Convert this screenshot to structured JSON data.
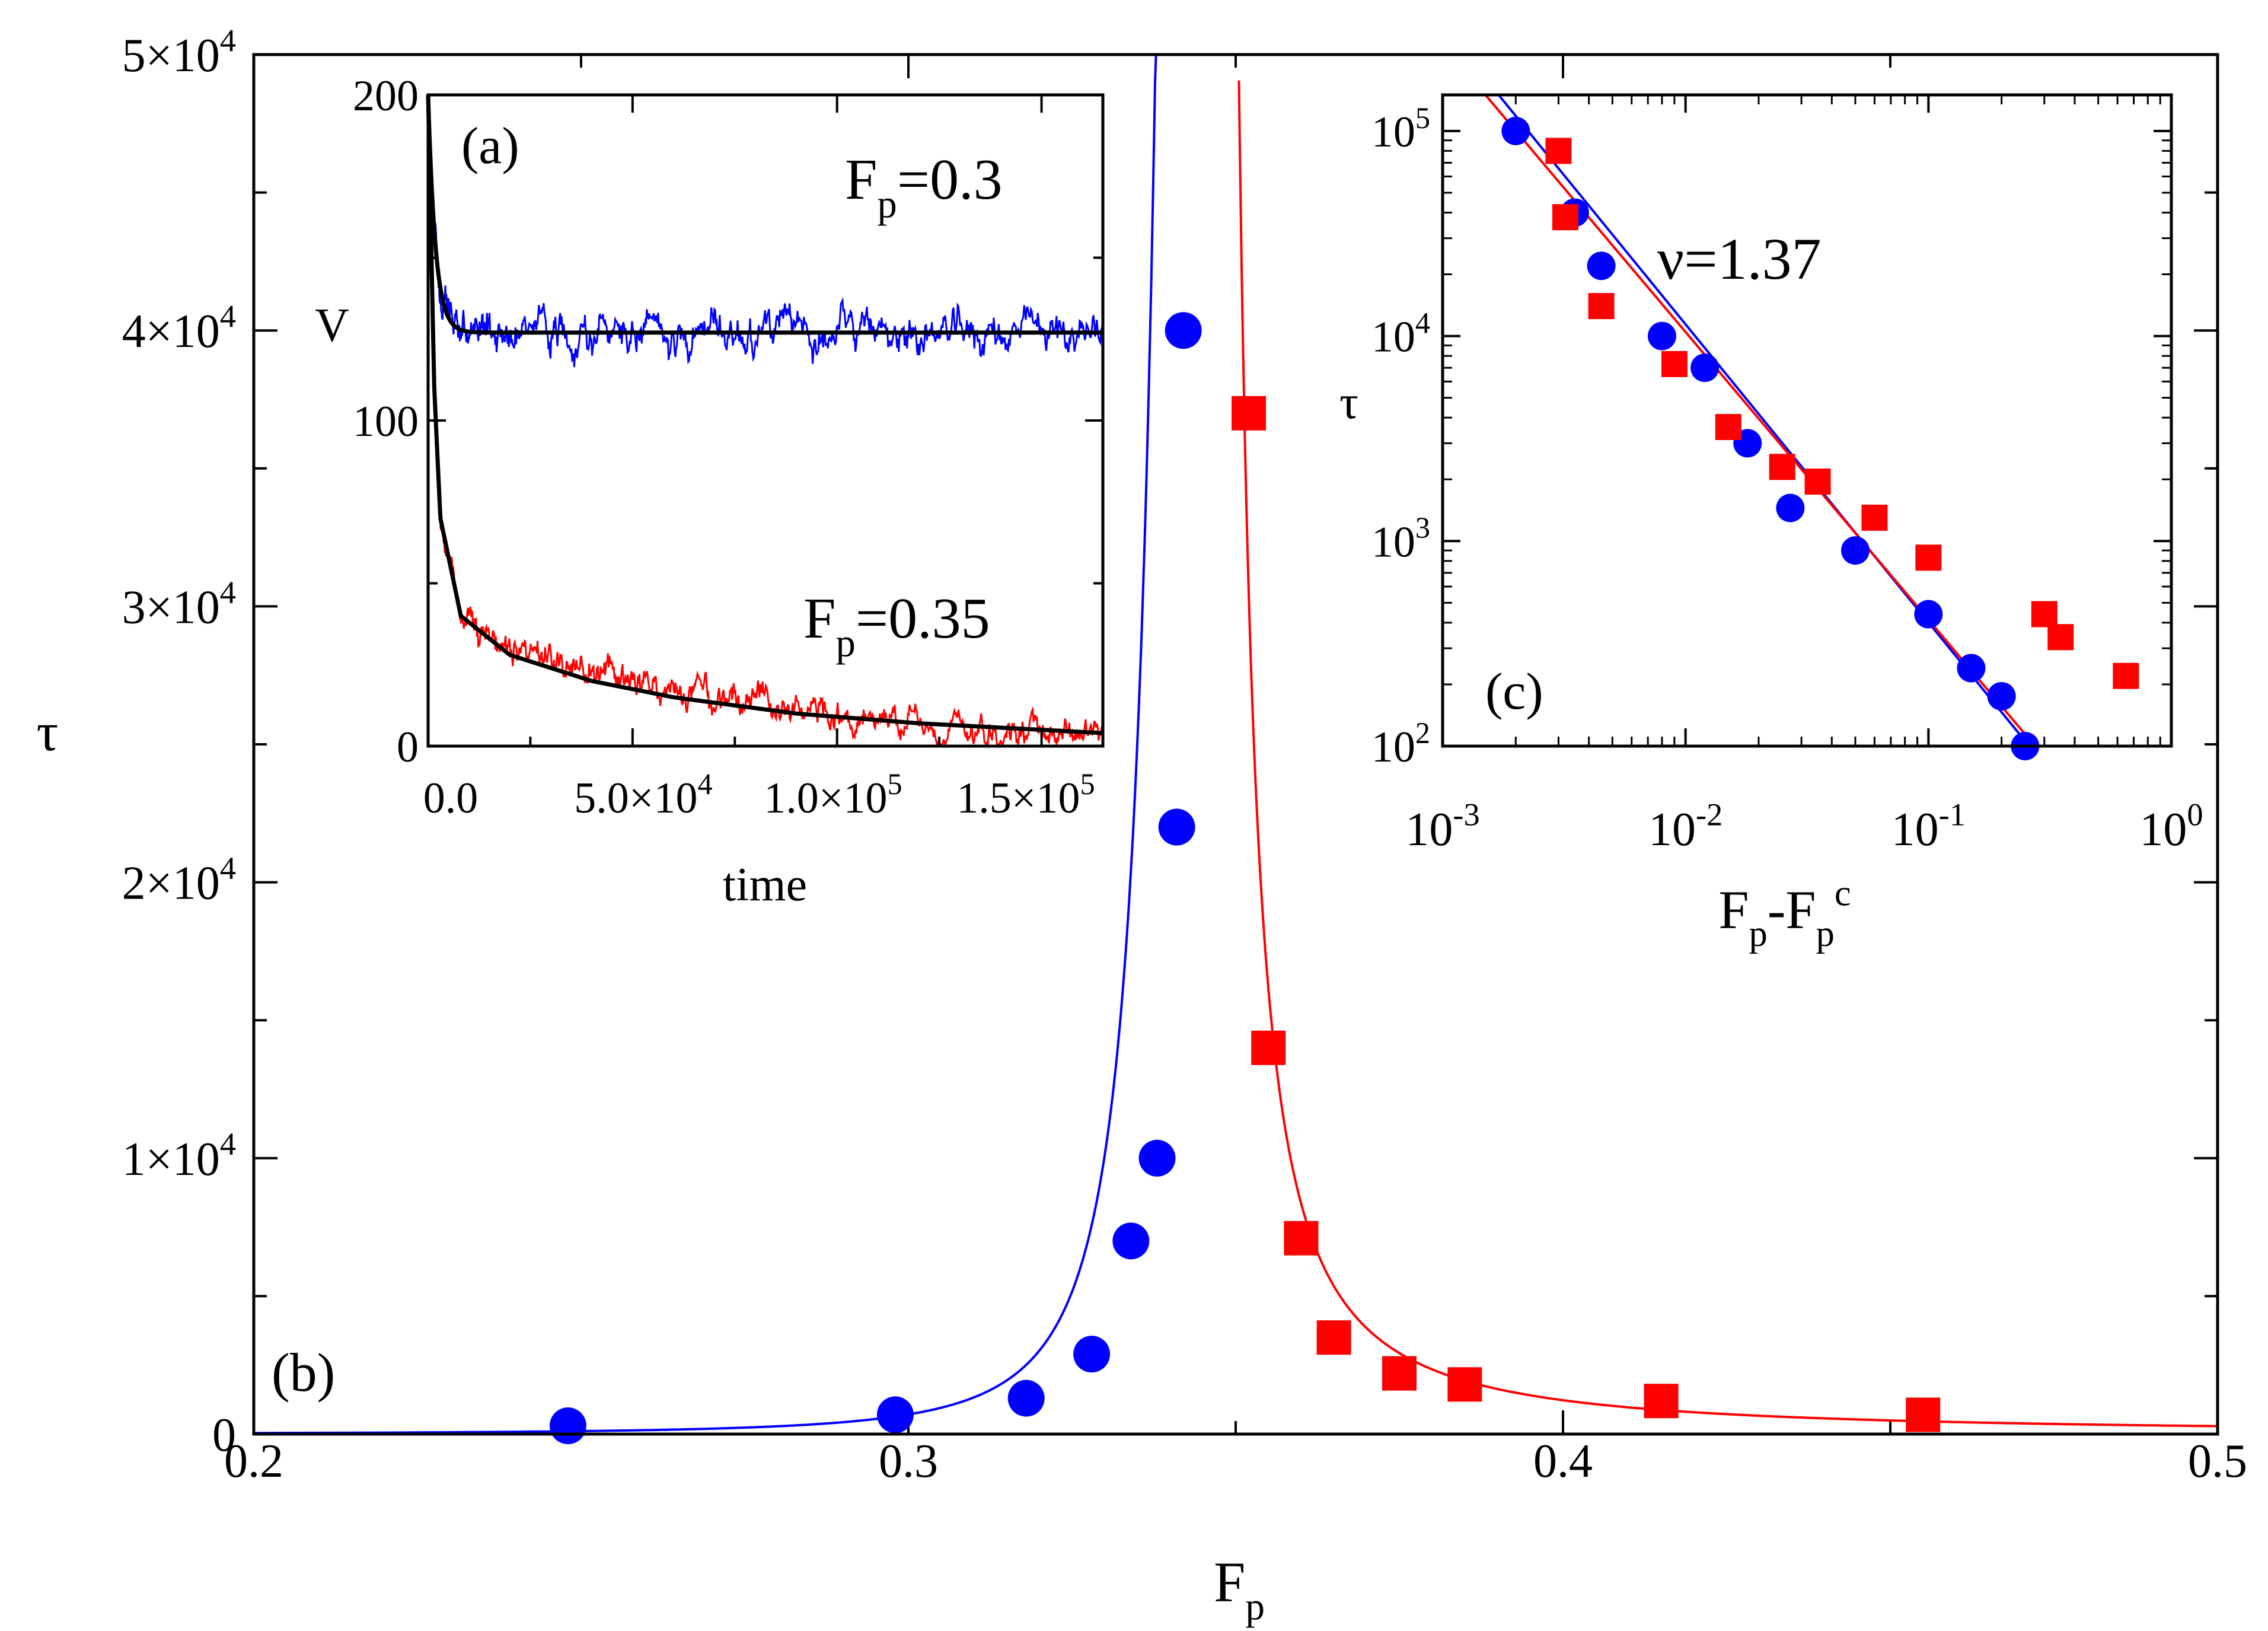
{
  "chart_data": [
    {
      "id": "b",
      "type": "scatter",
      "panel_label": "(b)",
      "xlabel": "F",
      "xlabel_sub": "p",
      "ylabel": "τ",
      "xlim": [
        0.2,
        0.5
      ],
      "ylim": [
        0,
        50000
      ],
      "x_ticks": [
        {
          "v": 0.2,
          "label": "0.2"
        },
        {
          "v": 0.3,
          "label": "0.3"
        },
        {
          "v": 0.4,
          "label": "0.4"
        },
        {
          "v": 0.5,
          "label": "0.5"
        }
      ],
      "y_ticks": [
        {
          "v": 0,
          "label": "0",
          "sup": ""
        },
        {
          "v": 10000,
          "label": "1×10",
          "sup": "4"
        },
        {
          "v": 20000,
          "label": "2×10",
          "sup": "4"
        },
        {
          "v": 30000,
          "label": "3×10",
          "sup": "4"
        },
        {
          "v": 40000,
          "label": "4×10",
          "sup": "4"
        },
        {
          "v": 50000,
          "label": "5×10",
          "sup": "4"
        }
      ],
      "critical_point": 0.3469,
      "series": [
        {
          "name": "below critical (circles)",
          "marker": "circle",
          "color": "#0000ff",
          "x": [
            0.248,
            0.298,
            0.318,
            0.328,
            0.334,
            0.338,
            0.341,
            0.342
          ],
          "y": [
            300,
            700,
            1300,
            2900,
            7000,
            10000,
            22000,
            40000
          ]
        },
        {
          "name": "above critical (squares)",
          "marker": "square",
          "color": "#ff0000",
          "x": [
            0.352,
            0.355,
            0.36,
            0.365,
            0.375,
            0.385,
            0.415,
            0.455
          ],
          "y": [
            37000,
            14000,
            7100,
            3500,
            2200,
            1800,
            1200,
            700
          ]
        }
      ],
      "fits": [
        {
          "name": "blue fit",
          "color": "#0000ff",
          "side": "left",
          "amplitude": 0.25,
          "exponent": 2.6
        },
        {
          "name": "red fit",
          "color": "#ff0000",
          "side": "right",
          "amplitude": 22,
          "exponent": 1.37
        }
      ]
    },
    {
      "id": "a",
      "type": "line",
      "panel_label": "(a)",
      "xlabel": "time",
      "ylabel": "V",
      "xlim": [
        0,
        165000
      ],
      "ylim": [
        0,
        200
      ],
      "x_ticks": [
        {
          "v": 0,
          "label": "0.0",
          "sup": ""
        },
        {
          "v": 50000,
          "label": "5.0×10",
          "sup": "4"
        },
        {
          "v": 100000,
          "label": "1.0×10",
          "sup": "5"
        },
        {
          "v": 150000,
          "label": "1.5×10",
          "sup": "5"
        }
      ],
      "y_ticks": [
        {
          "v": 0,
          "label": "0"
        },
        {
          "v": 100,
          "label": "100"
        },
        {
          "v": 200,
          "label": "200"
        }
      ],
      "annotations": [
        {
          "main": "F",
          "sub": "p",
          "rest": "=0.3"
        },
        {
          "main": "F",
          "sub": "p",
          "rest": "=0.35"
        }
      ],
      "series": [
        {
          "name": "F_p=0.3 simulation",
          "color": "#0000ff",
          "plateau": 127,
          "start": 200,
          "decay": 1800,
          "noise": 4
        },
        {
          "name": "F_p=0.3 fit",
          "color": "#000000",
          "plateau": 127,
          "start": 200,
          "decay": 1800,
          "noise": 0
        },
        {
          "name": "F_p=0.35 simulation",
          "color": "#ff0000",
          "noise": 3,
          "x": [
            0,
            1500,
            3000,
            8000,
            20000,
            40000,
            60000,
            90000,
            120000,
            150000,
            165000
          ],
          "y": [
            200,
            110,
            70,
            42,
            30,
            22,
            16,
            10,
            7,
            5,
            4
          ]
        },
        {
          "name": "F_p=0.35 fit",
          "color": "#000000",
          "noise": 0,
          "x": [
            0,
            1500,
            3000,
            8000,
            20000,
            40000,
            60000,
            90000,
            120000,
            150000,
            165000
          ],
          "y": [
            200,
            110,
            70,
            40,
            28,
            20,
            15,
            10,
            7,
            5,
            4
          ]
        }
      ]
    },
    {
      "id": "c",
      "type": "scatter",
      "scale": "log-log",
      "panel_label": "(c)",
      "xlabel": "F",
      "xlabel_sub1": "p",
      "xlabel_mid": "-F",
      "xlabel_sub2": "p",
      "xlabel_sup": "c",
      "ylabel": "τ",
      "xlim": [
        0.001,
        1
      ],
      "ylim": [
        100,
        150000
      ],
      "x_ticks": [
        {
          "v": 0.001,
          "base": "10",
          "sup": "-3"
        },
        {
          "v": 0.01,
          "base": "10",
          "sup": "-2"
        },
        {
          "v": 0.1,
          "base": "10",
          "sup": "-1"
        },
        {
          "v": 1,
          "base": "10",
          "sup": "0"
        }
      ],
      "y_ticks": [
        {
          "v": 100,
          "base": "10",
          "sup": "2"
        },
        {
          "v": 1000,
          "base": "10",
          "sup": "3"
        },
        {
          "v": 10000,
          "base": "10",
          "sup": "4"
        },
        {
          "v": 100000,
          "base": "10",
          "sup": "5"
        }
      ],
      "annotation": "ν=1.37",
      "series": [
        {
          "name": "circles",
          "marker": "circle",
          "color": "#0000ff",
          "x": [
            0.002,
            0.0035,
            0.0045,
            0.008,
            0.012,
            0.018,
            0.027,
            0.05,
            0.1,
            0.15,
            0.2,
            0.25
          ],
          "y": [
            100000,
            40000,
            22000,
            10000,
            7000,
            3000,
            1450,
            900,
            440,
            240,
            175,
            100
          ]
        },
        {
          "name": "squares",
          "marker": "square",
          "color": "#ff0000",
          "x": [
            0.003,
            0.0032,
            0.0045,
            0.009,
            0.015,
            0.025,
            0.035,
            0.06,
            0.1,
            0.3,
            0.35,
            0.65
          ],
          "y": [
            80000,
            38000,
            14000,
            7300,
            3600,
            2300,
            1950,
            1300,
            830,
            440,
            340,
            220
          ]
        }
      ],
      "fits": [
        {
          "name": "blue fit",
          "color": "#0000ff",
          "x": [
            0.0017,
            0.26
          ],
          "y": [
            150000,
            100
          ]
        },
        {
          "name": "red fit",
          "color": "#ff0000",
          "x": [
            0.0015,
            0.275
          ],
          "y": [
            150000,
            100
          ]
        }
      ]
    }
  ]
}
